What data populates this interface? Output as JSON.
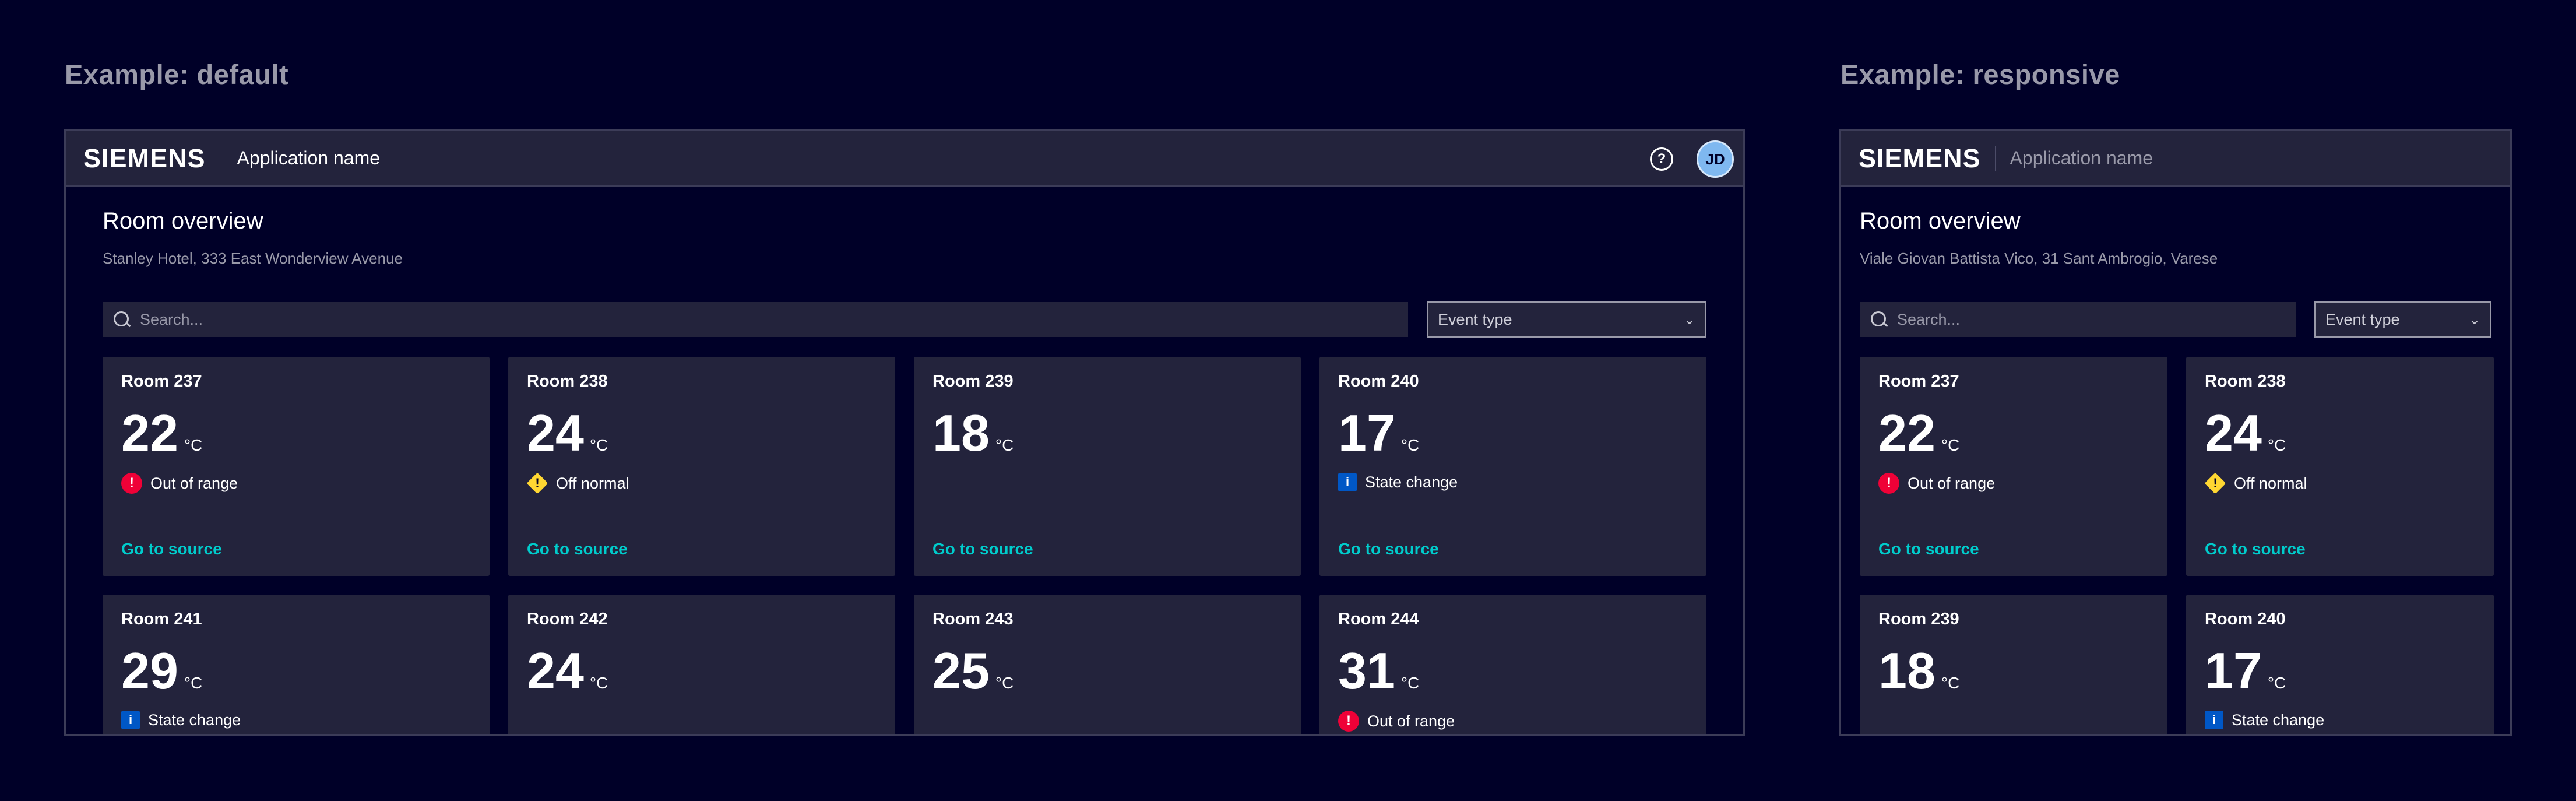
{
  "examples": {
    "default_label": "Example:  default",
    "responsive_label": "Example:  responsive"
  },
  "default": {
    "brand": "SIEMENS",
    "app_name": "Application name",
    "help_icon": "?",
    "avatar_initials": "JD",
    "page_title": "Room overview",
    "address": "Stanley Hotel, 333 East Wonderview Avenue",
    "search_placeholder": "Search...",
    "event_type": "Event type",
    "link_label": "Go to source",
    "cards": [
      {
        "room": "Room 237",
        "temp": "22",
        "unit": "°C",
        "status": "Out of range",
        "status_type": "error",
        "link": "Go to source"
      },
      {
        "room": "Room 238",
        "temp": "24",
        "unit": "°C",
        "status": "Off normal",
        "status_type": "warning",
        "link": "Go to source"
      },
      {
        "room": "Room 239",
        "temp": "18",
        "unit": "°C",
        "status": "",
        "status_type": "none",
        "link": "Go to source"
      },
      {
        "room": "Room 240",
        "temp": "17",
        "unit": "°C",
        "status": "State change",
        "status_type": "info",
        "link": "Go to source"
      },
      {
        "room": "Room 241",
        "temp": "29",
        "unit": "°C",
        "status": "State change",
        "status_type": "info",
        "link": ""
      },
      {
        "room": "Room 242",
        "temp": "24",
        "unit": "°C",
        "status": "",
        "status_type": "none",
        "link": ""
      },
      {
        "room": "Room 243",
        "temp": "25",
        "unit": "°C",
        "status": "",
        "status_type": "none",
        "link": ""
      },
      {
        "room": "Room 244",
        "temp": "31",
        "unit": "°C",
        "status": "Out of range",
        "status_type": "error",
        "link": ""
      }
    ]
  },
  "responsive": {
    "brand": "SIEMENS",
    "app_name": "Application name",
    "page_title": "Room overview",
    "address": "Viale Giovan Battista Vico, 31 Sant Ambrogio, Varese",
    "search_placeholder": "Search...",
    "event_type": "Event type",
    "cards": [
      {
        "room": "Room 237",
        "temp": "22",
        "unit": "°C",
        "status": "Out of range",
        "status_type": "error",
        "link": "Go to source"
      },
      {
        "room": "Room 238",
        "temp": "24",
        "unit": "°C",
        "status": "Off normal",
        "status_type": "warning",
        "link": "Go to source"
      },
      {
        "room": "Room 239",
        "temp": "18",
        "unit": "°C",
        "status": "",
        "status_type": "none",
        "link": ""
      },
      {
        "room": "Room 240",
        "temp": "17",
        "unit": "°C",
        "status": "State change",
        "status_type": "info",
        "link": ""
      }
    ]
  },
  "colors": {
    "background": "#000028",
    "surface": "#23233c",
    "accent_link": "#00cccc",
    "error": "#ef0137",
    "warning": "#ffd732",
    "info": "#0057c6"
  }
}
